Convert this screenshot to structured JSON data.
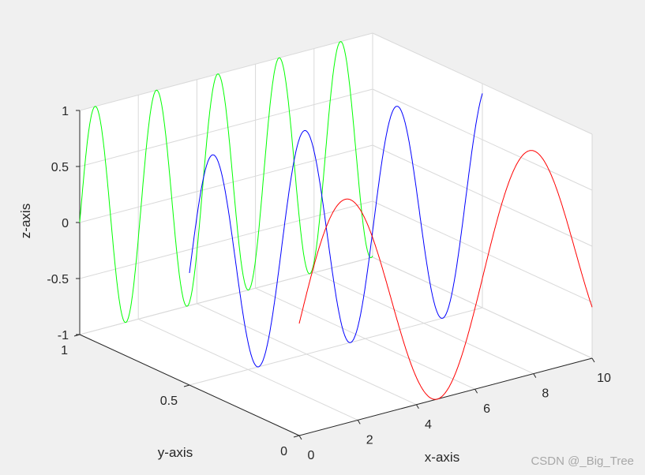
{
  "chart_data": {
    "type": "line",
    "subtype": "3d-line",
    "xlabel": "x-axis",
    "ylabel": "y-axis",
    "zlabel": "z-axis",
    "xlim": [
      0,
      10
    ],
    "ylim": [
      0,
      1
    ],
    "zlim": [
      -1,
      1
    ],
    "xticks": [
      0,
      2,
      4,
      6,
      8,
      10
    ],
    "yticks": [
      0,
      0.5,
      1
    ],
    "zticks": [
      -1,
      -0.5,
      0,
      0.5,
      1
    ],
    "grid": true,
    "background": "#ffffff",
    "series": [
      {
        "color": "#00ff00",
        "y": 1,
        "x_range": [
          0,
          10
        ],
        "z": "sin(3*x)"
      },
      {
        "color": "#0000ff",
        "y": 0.5,
        "x_range": [
          0,
          10
        ],
        "z": "sin(2*x)"
      },
      {
        "color": "#ff0000",
        "y": 0,
        "x_range": [
          0,
          10
        ],
        "z": "sin(x)"
      }
    ]
  },
  "watermark": "CSDN @_Big_Tree"
}
